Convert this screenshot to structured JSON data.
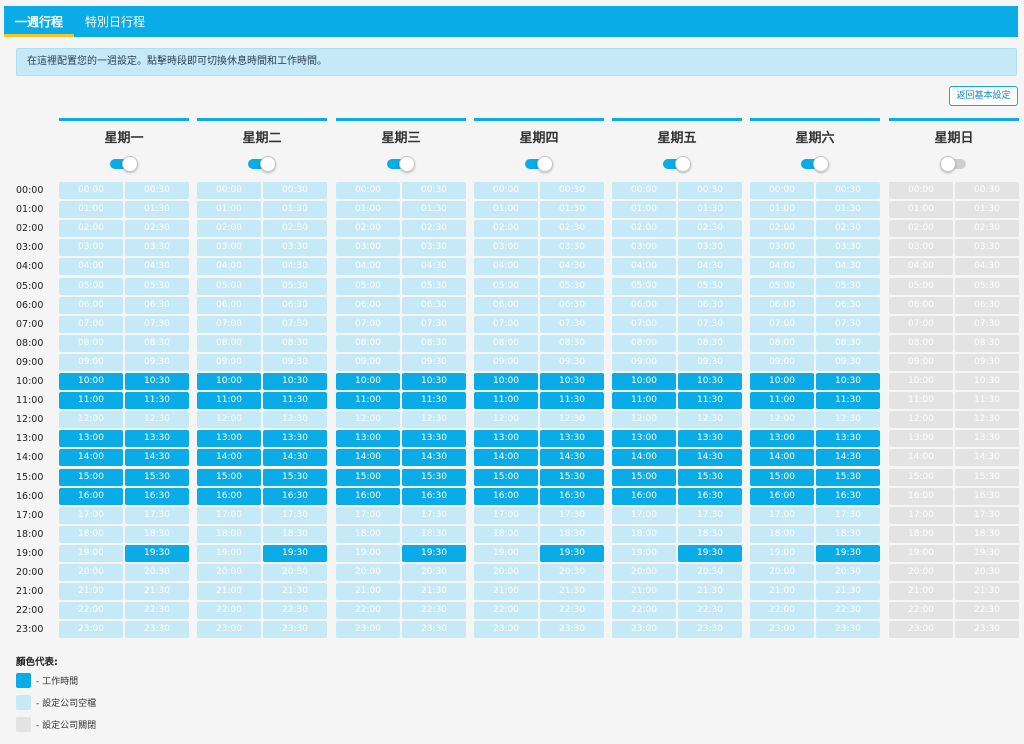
{
  "tabs": [
    {
      "label": "一週行程",
      "active": true
    },
    {
      "label": "特別日行程",
      "active": false
    }
  ],
  "info_text": "在這裡配置您的一週設定。點擊時段即可切換休息時間和工作時間。",
  "return_button_label": "返回基本設定",
  "hours": [
    "00:00",
    "01:00",
    "02:00",
    "03:00",
    "04:00",
    "05:00",
    "06:00",
    "07:00",
    "08:00",
    "09:00",
    "10:00",
    "11:00",
    "12:00",
    "13:00",
    "14:00",
    "15:00",
    "16:00",
    "17:00",
    "18:00",
    "19:00",
    "20:00",
    "21:00",
    "22:00",
    "23:00"
  ],
  "slot_labels": [
    [
      "00:00",
      "00:30"
    ],
    [
      "01:00",
      "01:30"
    ],
    [
      "02:00",
      "02:30"
    ],
    [
      "03:00",
      "03:30"
    ],
    [
      "04:00",
      "04:30"
    ],
    [
      "05:00",
      "05:30"
    ],
    [
      "06:00",
      "06:30"
    ],
    [
      "07:00",
      "07:30"
    ],
    [
      "08:00",
      "08:30"
    ],
    [
      "09:00",
      "09:30"
    ],
    [
      "10:00",
      "10:30"
    ],
    [
      "11:00",
      "11:30"
    ],
    [
      "12:00",
      "12:30"
    ],
    [
      "13:00",
      "13:30"
    ],
    [
      "14:00",
      "14:30"
    ],
    [
      "15:00",
      "15:30"
    ],
    [
      "16:00",
      "16:30"
    ],
    [
      "17:00",
      "17:30"
    ],
    [
      "18:00",
      "18:30"
    ],
    [
      "19:00",
      "19:30"
    ],
    [
      "20:00",
      "20:30"
    ],
    [
      "21:00",
      "21:30"
    ],
    [
      "22:00",
      "22:30"
    ],
    [
      "23:00",
      "23:30"
    ]
  ],
  "work_slots": [
    "10:00",
    "10:30",
    "11:00",
    "11:30",
    "13:00",
    "13:30",
    "14:00",
    "14:30",
    "15:00",
    "15:30",
    "16:00",
    "16:30",
    "19:30"
  ],
  "days": [
    {
      "name": "星期一",
      "enabled": true
    },
    {
      "name": "星期二",
      "enabled": true
    },
    {
      "name": "星期三",
      "enabled": true
    },
    {
      "name": "星期四",
      "enabled": true
    },
    {
      "name": "星期五",
      "enabled": true
    },
    {
      "name": "星期六",
      "enabled": true
    },
    {
      "name": "星期日",
      "enabled": false
    }
  ],
  "legend": {
    "title": "顏色代表:",
    "items": [
      {
        "label": "- 工作時間",
        "color": "#0aace8"
      },
      {
        "label": "- 設定公司空檔",
        "color": "#c6e9f7"
      },
      {
        "label": "- 設定公司關閉",
        "color": "#e3e3e3"
      }
    ]
  },
  "colors": {
    "accent": "#0aace8",
    "empty": "#c6e9f7",
    "closed": "#e3e3e3",
    "tab_underline": "#f7c325"
  }
}
